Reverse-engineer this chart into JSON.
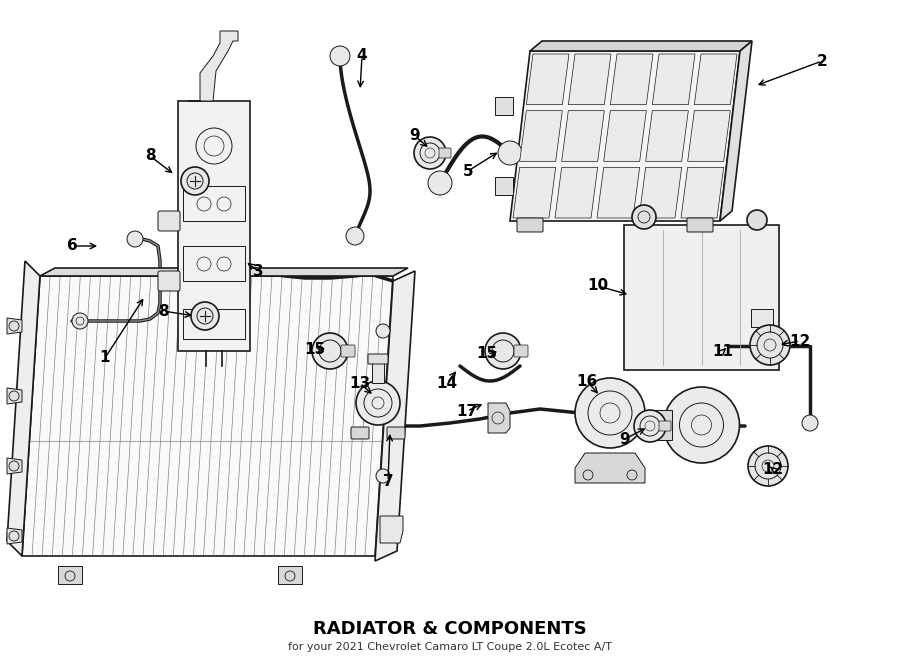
{
  "title": "RADIATOR & COMPONENTS",
  "subtitle": "for your 2021 Chevrolet Camaro LT Coupe 2.0L Ecotec A/T",
  "background_color": "#ffffff",
  "line_color": "#1a1a1a",
  "fig_width": 9.0,
  "fig_height": 6.61,
  "dpi": 100
}
